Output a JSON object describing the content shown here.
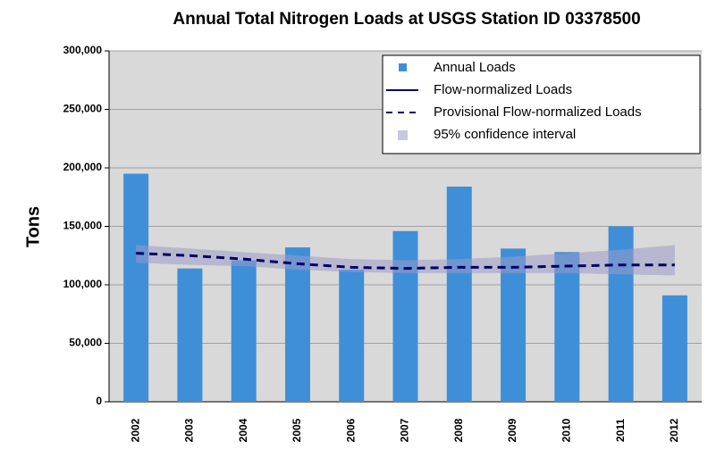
{
  "chart_data": {
    "type": "bar",
    "title": "Annual Total Nitrogen Loads at USGS Station ID 03378500",
    "y_label": "Tons",
    "categories": [
      "2002",
      "2003",
      "2004",
      "2005",
      "2006",
      "2007",
      "2008",
      "2009",
      "2010",
      "2011",
      "2012"
    ],
    "series": [
      {
        "name": "Annual Loads",
        "type": "bar",
        "color": "#3f8fd8",
        "values": [
          195000,
          114000,
          121000,
          132000,
          113000,
          146000,
          184000,
          131000,
          128000,
          150000,
          91000
        ]
      },
      {
        "name": "Flow-normalized Loads",
        "type": "line",
        "style": "solid",
        "color": "#000066",
        "values": [
          null,
          null,
          null,
          null,
          null,
          null,
          null,
          null,
          null,
          null,
          null
        ]
      },
      {
        "name": "Provisional Flow-normalized Loads",
        "type": "line",
        "style": "dashed",
        "color": "#000066",
        "values": [
          127000,
          125000,
          122000,
          118000,
          115000,
          114000,
          115000,
          115000,
          116000,
          117000,
          117000
        ]
      },
      {
        "name": "95% confidence interval",
        "type": "band",
        "color": "#9a9ac8",
        "lower": [
          119000,
          117000,
          116000,
          113000,
          111000,
          110000,
          110000,
          110000,
          110000,
          109000,
          108000
        ],
        "upper": [
          134000,
          131000,
          128000,
          125000,
          122000,
          121000,
          122000,
          124000,
          127000,
          130000,
          134000
        ]
      }
    ],
    "ylim": [
      0,
      300000
    ],
    "yticks": [
      0,
      {
        "value": 50000,
        "label": "50,000"
      },
      {
        "value": 100000,
        "label": "100,000"
      },
      {
        "value": 150000,
        "label": "150,000"
      },
      {
        "value": 200000,
        "label": "200,000"
      },
      {
        "value": 250000,
        "label": "250,000"
      },
      {
        "value": 300000,
        "label": "300,000"
      }
    ],
    "grid": true,
    "legend": "upper right"
  }
}
